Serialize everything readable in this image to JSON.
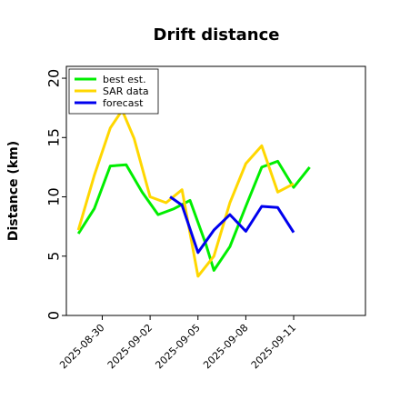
{
  "chart_data": {
    "type": "line",
    "title": "Drift distance",
    "xlabel": "",
    "ylabel": "Distance (km)",
    "x_type": "date",
    "xlim": [
      "2025-08-27T18:00",
      "2025-09-15T12:00"
    ],
    "ylim": [
      0,
      21
    ],
    "yticks": [
      0,
      5,
      10,
      15,
      20
    ],
    "xticks": [
      "2025-08-30",
      "2025-09-02",
      "2025-09-05",
      "2025-09-08",
      "2025-09-11"
    ],
    "legend": {
      "position": "top-left",
      "entries": [
        "best est.",
        "SAR data",
        "forecast"
      ]
    },
    "grid": false,
    "series": [
      {
        "name": "best est.",
        "color": "#00ee00",
        "points": [
          [
            "2025-08-28T12:00",
            6.9
          ],
          [
            "2025-08-29T12:00",
            9.0
          ],
          [
            "2025-08-30T12:00",
            12.6
          ],
          [
            "2025-08-31T12:00",
            12.7
          ],
          [
            "2025-09-01T12:00",
            10.4
          ],
          [
            "2025-09-02T12:00",
            8.5
          ],
          [
            "2025-09-03T12:00",
            9.0
          ],
          [
            "2025-09-04T12:00",
            9.7
          ],
          [
            "2025-09-05T12:00",
            6.0
          ],
          [
            "2025-09-06T00:00",
            3.8
          ],
          [
            "2025-09-07T00:00",
            5.8
          ],
          [
            "2025-09-08T00:00",
            9.2
          ],
          [
            "2025-09-09T00:00",
            12.5
          ],
          [
            "2025-09-10T00:00",
            13.0
          ],
          [
            "2025-09-11T00:00",
            10.8
          ],
          [
            "2025-09-12T00:00",
            12.5
          ]
        ]
      },
      {
        "name": "SAR data",
        "color": "#ffd700",
        "points": [
          [
            "2025-08-28T12:00",
            7.2
          ],
          [
            "2025-08-29T12:00",
            11.8
          ],
          [
            "2025-08-30T12:00",
            15.8
          ],
          [
            "2025-08-31T06:00",
            17.3
          ],
          [
            "2025-09-01T00:00",
            14.9
          ],
          [
            "2025-09-02T00:00",
            10.0
          ],
          [
            "2025-09-03T00:00",
            9.5
          ],
          [
            "2025-09-04T00:00",
            10.6
          ],
          [
            "2025-09-05T00:00",
            3.3
          ],
          [
            "2025-09-06T00:00",
            5.0
          ],
          [
            "2025-09-07T00:00",
            9.5
          ],
          [
            "2025-09-08T00:00",
            12.8
          ],
          [
            "2025-09-09T00:00",
            14.3
          ],
          [
            "2025-09-10T00:00",
            10.4
          ],
          [
            "2025-09-11T00:00",
            11.1
          ]
        ]
      },
      {
        "name": "forecast",
        "color": "#0000ee",
        "points": [
          [
            "2025-09-03T06:00",
            10.0
          ],
          [
            "2025-09-04T00:00",
            9.3
          ],
          [
            "2025-09-05T00:00",
            5.3
          ],
          [
            "2025-09-06T00:00",
            7.2
          ],
          [
            "2025-09-07T00:00",
            8.5
          ],
          [
            "2025-09-08T00:00",
            7.1
          ],
          [
            "2025-09-09T00:00",
            9.2
          ],
          [
            "2025-09-10T00:00",
            9.1
          ],
          [
            "2025-09-11T00:00",
            7.0
          ]
        ]
      }
    ]
  }
}
